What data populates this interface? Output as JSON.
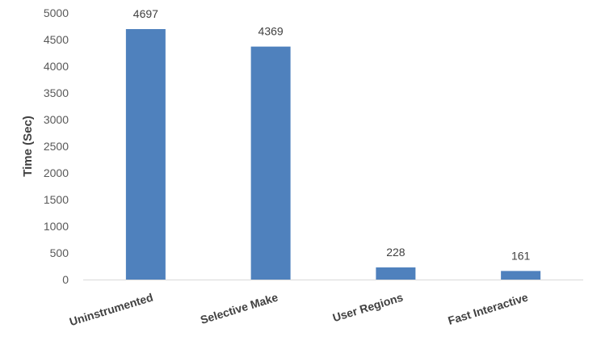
{
  "chart_data": {
    "type": "bar",
    "title": "",
    "xlabel": "",
    "ylabel": "Time (Sec)",
    "categories": [
      "Uninstrumented",
      "Selective Make",
      "User Regions",
      "Fast Interactive"
    ],
    "values": [
      4697,
      4369,
      228,
      161
    ],
    "data_labels": [
      "4697",
      "4369",
      "228",
      "161"
    ],
    "ylim": [
      0,
      5000
    ],
    "yticks": [
      0,
      500,
      1000,
      1500,
      2000,
      2500,
      3000,
      3500,
      4000,
      4500,
      5000
    ],
    "grid": false,
    "legend": "none",
    "colors": {
      "bar": "#4f81bd",
      "axis": "#d9d9d9"
    }
  }
}
